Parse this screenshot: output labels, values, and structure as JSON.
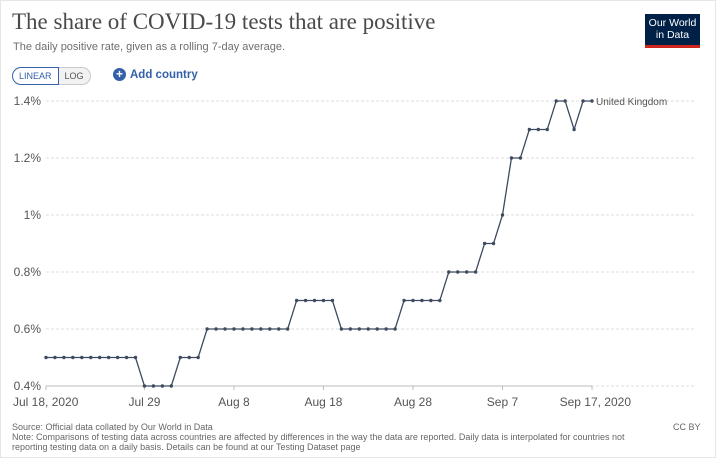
{
  "header": {
    "title": "The share of COVID-19 tests that are positive",
    "subtitle": "The daily positive rate, given as a rolling 7-day average.",
    "logo_line1": "Our World",
    "logo_line2": "in Data"
  },
  "controls": {
    "linear_label": "LINEAR",
    "log_label": "LOG",
    "add_label": "Add country",
    "plus_glyph": "+"
  },
  "chart_data": {
    "type": "line",
    "title": "The share of COVID-19 tests that are positive",
    "xlabel": "",
    "ylabel": "",
    "ylim": [
      0.4,
      1.4
    ],
    "y_ticks": [
      0.4,
      0.6,
      0.8,
      1.0,
      1.2,
      1.4
    ],
    "y_tick_labels": [
      "0.4%",
      "0.6%",
      "0.8%",
      "1%",
      "1.2%",
      "1.4%"
    ],
    "x_start": "Jul 18, 2020",
    "x_end": "Sep 17, 2020",
    "x_tick_labels": [
      "Jul 18, 2020",
      "Jul 29",
      "Aug 8",
      "Aug 18",
      "Aug 28",
      "Sep 7",
      "Sep 17, 2020"
    ],
    "x_tick_day_index": [
      0,
      11,
      21,
      31,
      41,
      51,
      61
    ],
    "series": [
      {
        "name": "United Kingdom",
        "color": "#3d4a5f",
        "values": [
          0.5,
          0.5,
          0.5,
          0.5,
          0.5,
          0.5,
          0.5,
          0.5,
          0.5,
          0.5,
          0.5,
          0.4,
          0.4,
          0.4,
          0.4,
          0.5,
          0.5,
          0.5,
          0.6,
          0.6,
          0.6,
          0.6,
          0.6,
          0.6,
          0.6,
          0.6,
          0.6,
          0.6,
          0.7,
          0.7,
          0.7,
          0.7,
          0.7,
          0.6,
          0.6,
          0.6,
          0.6,
          0.6,
          0.6,
          0.6,
          0.7,
          0.7,
          0.7,
          0.7,
          0.7,
          0.8,
          0.8,
          0.8,
          0.8,
          0.9,
          0.9,
          1.0,
          1.2,
          1.2,
          1.3,
          1.3,
          1.3,
          1.4,
          1.4,
          1.3,
          1.4,
          1.4
        ]
      }
    ]
  },
  "footer": {
    "source": "Source: Official data collated by Our World in Data",
    "note": "Note: Comparisons of testing data across countries are affected by differences in the way the data are reported. Daily data is interpolated for countries not reporting testing data on a daily basis. Details can be found at our Testing Dataset page",
    "license": "CC BY"
  }
}
